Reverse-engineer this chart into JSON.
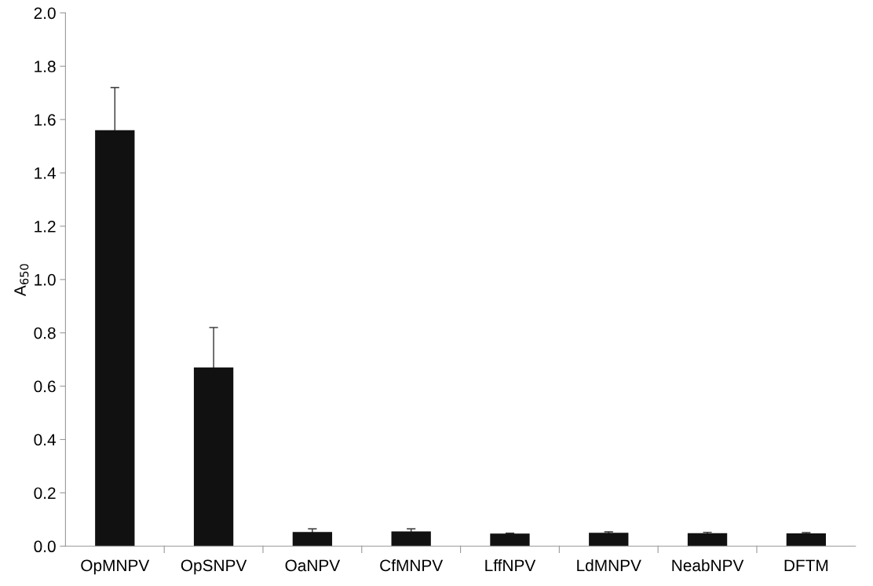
{
  "chart_data": {
    "type": "bar",
    "ylabel": "A$_{650}$",
    "categories": [
      "OpMNPV",
      "OpSNPV",
      "OaNPV",
      "CfMNPV",
      "LffNPV",
      "LdMNPV",
      "NeabNPV",
      "DFTM"
    ],
    "values": [
      1.56,
      0.67,
      0.053,
      0.055,
      0.047,
      0.05,
      0.049,
      0.048
    ],
    "errors": [
      0.16,
      0.15,
      0.012,
      0.01,
      0.002,
      0.004,
      0.003,
      0.003
    ],
    "color": "#111111",
    "ylim": [
      0,
      2.0
    ],
    "yticks": [
      {
        "value": 0,
        "label": "0.0"
      },
      0.2,
      0.4,
      0.6,
      0.8,
      {
        "value": 1,
        "label": "1.0"
      },
      1.2,
      1.4,
      1.6,
      1.8,
      {
        "value": 2,
        "label": "2.0"
      }
    ],
    "grid": false,
    "legend": false
  }
}
